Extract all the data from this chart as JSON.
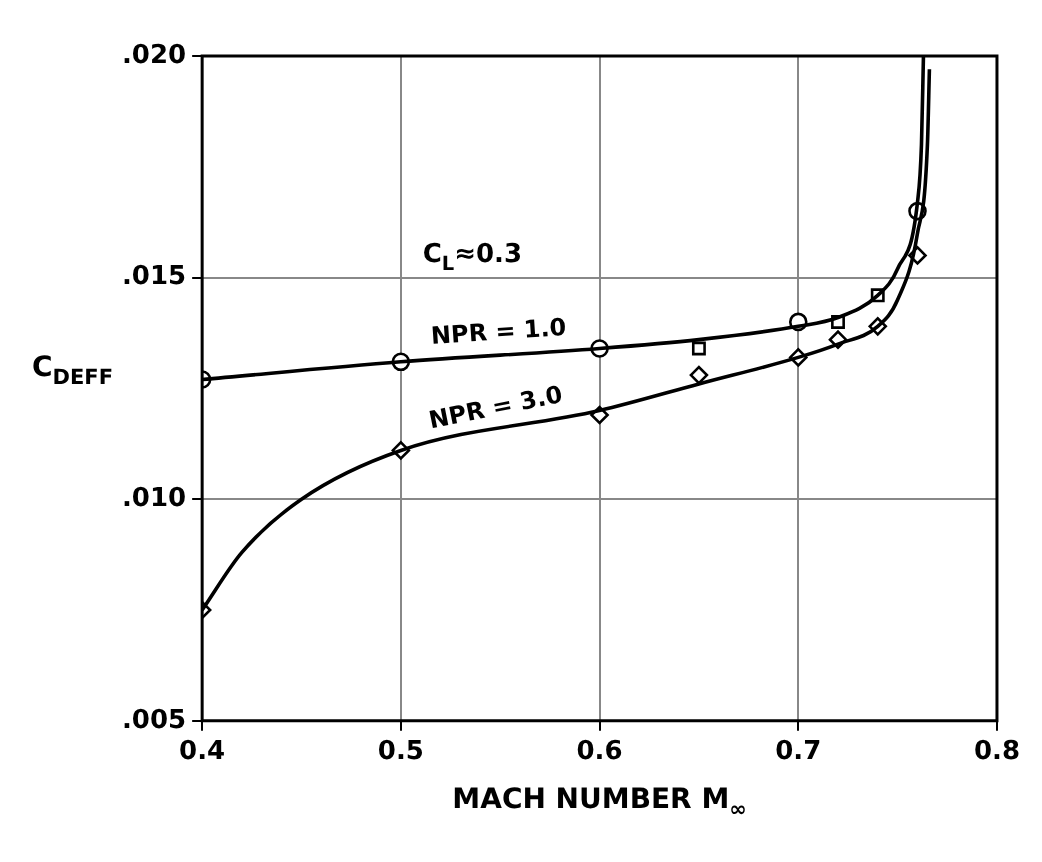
{
  "chart_data": {
    "type": "line",
    "xlabel": "MACH NUMBER M$_{∞}$",
    "ylabel": "C$_{DEFF}$",
    "annotations": [
      "C$_{L}$≈0.3"
    ],
    "series": [
      {
        "name": "NPR = 1.0",
        "color": "#000000",
        "marker": "none",
        "x": [
          0.4,
          0.5,
          0.6,
          0.65,
          0.7,
          0.72,
          0.74,
          0.75,
          0.76,
          0.762,
          0.763
        ],
        "values": [
          0.0127,
          0.0131,
          0.0134,
          0.0136,
          0.0139,
          0.0141,
          0.0146,
          0.0152,
          0.0167,
          0.018,
          0.02
        ]
      },
      {
        "name": "NPR = 3.0",
        "color": "#000000",
        "marker": "none",
        "x": [
          0.4,
          0.42,
          0.45,
          0.5,
          0.6,
          0.65,
          0.7,
          0.72,
          0.74,
          0.75,
          0.76,
          0.765,
          0.766
        ],
        "values": [
          0.0075,
          0.0088,
          0.01,
          0.0111,
          0.012,
          0.0126,
          0.0132,
          0.0135,
          0.0139,
          0.0145,
          0.016,
          0.018,
          0.0197
        ]
      },
      {
        "type": "scatter",
        "color": "#000000",
        "marker": "circle",
        "x": [
          0.4,
          0.5,
          0.6,
          0.7,
          0.76
        ],
        "values": [
          0.0127,
          0.0131,
          0.0134,
          0.014,
          0.0165
        ]
      },
      {
        "type": "scatter",
        "color": "#000000",
        "marker": "square",
        "x": [
          0.65,
          0.72,
          0.74
        ],
        "values": [
          0.0134,
          0.014,
          0.0146
        ]
      },
      {
        "type": "scatter",
        "color": "#000000",
        "marker": "diamond",
        "x": [
          0.4,
          0.5,
          0.6,
          0.65,
          0.7,
          0.72,
          0.74,
          0.76
        ],
        "values": [
          0.0075,
          0.0111,
          0.0119,
          0.0128,
          0.0132,
          0.0136,
          0.0139,
          0.0155
        ]
      }
    ],
    "xlim": [
      0.4,
      0.8
    ],
    "xticks": [
      0.4,
      0.5,
      0.6,
      0.7,
      0.8
    ],
    "ylim": [
      0.005,
      0.02
    ],
    "yticks": [
      {
        "value": 0.005,
        "label": ".005"
      },
      {
        "value": 0.01,
        "label": ".010"
      },
      {
        "value": 0.015,
        "label": ".015"
      },
      {
        "value": 0.02,
        "label": ".020"
      }
    ],
    "grid": true,
    "legend": false
  }
}
